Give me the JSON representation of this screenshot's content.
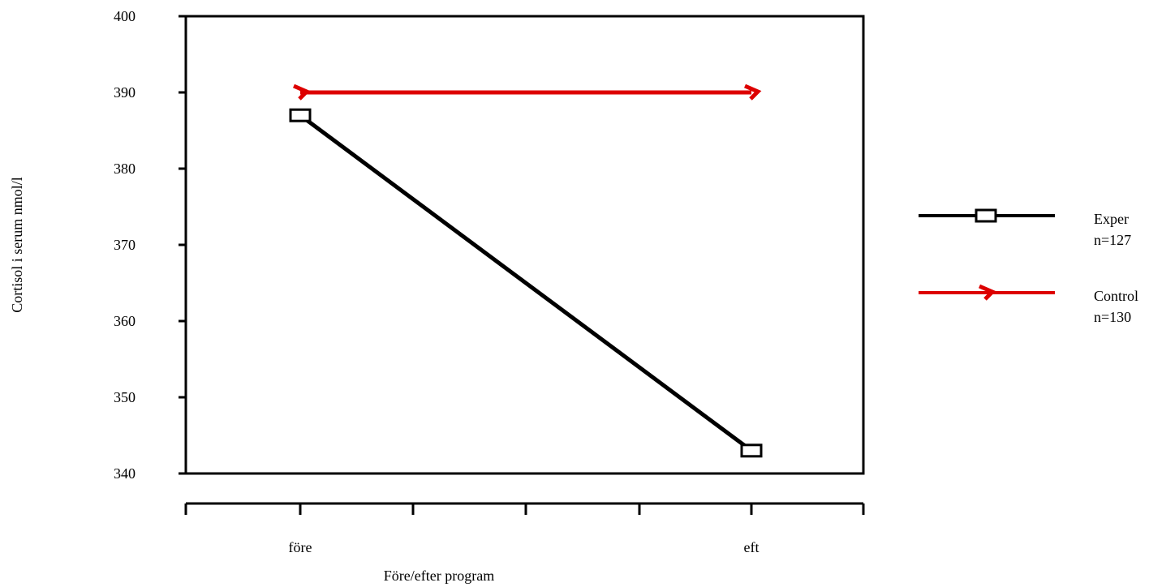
{
  "chart_data": {
    "type": "line",
    "xlabel": "Före/efter program",
    "ylabel": "Cortisol i serum nmol/l",
    "categories": [
      "före",
      "eft"
    ],
    "ylim": [
      340,
      400
    ],
    "yticks": [
      340,
      350,
      360,
      370,
      380,
      390,
      400
    ],
    "grid": false,
    "legend_position": "right",
    "series": [
      {
        "name": "Exper",
        "sub": "n=127",
        "values": [
          387,
          343
        ],
        "color": "#000000",
        "marker": "square"
      },
      {
        "name": "Control",
        "sub": "n=130",
        "values": [
          390,
          390
        ],
        "color": "#dd0000",
        "marker": "chevron"
      }
    ]
  }
}
